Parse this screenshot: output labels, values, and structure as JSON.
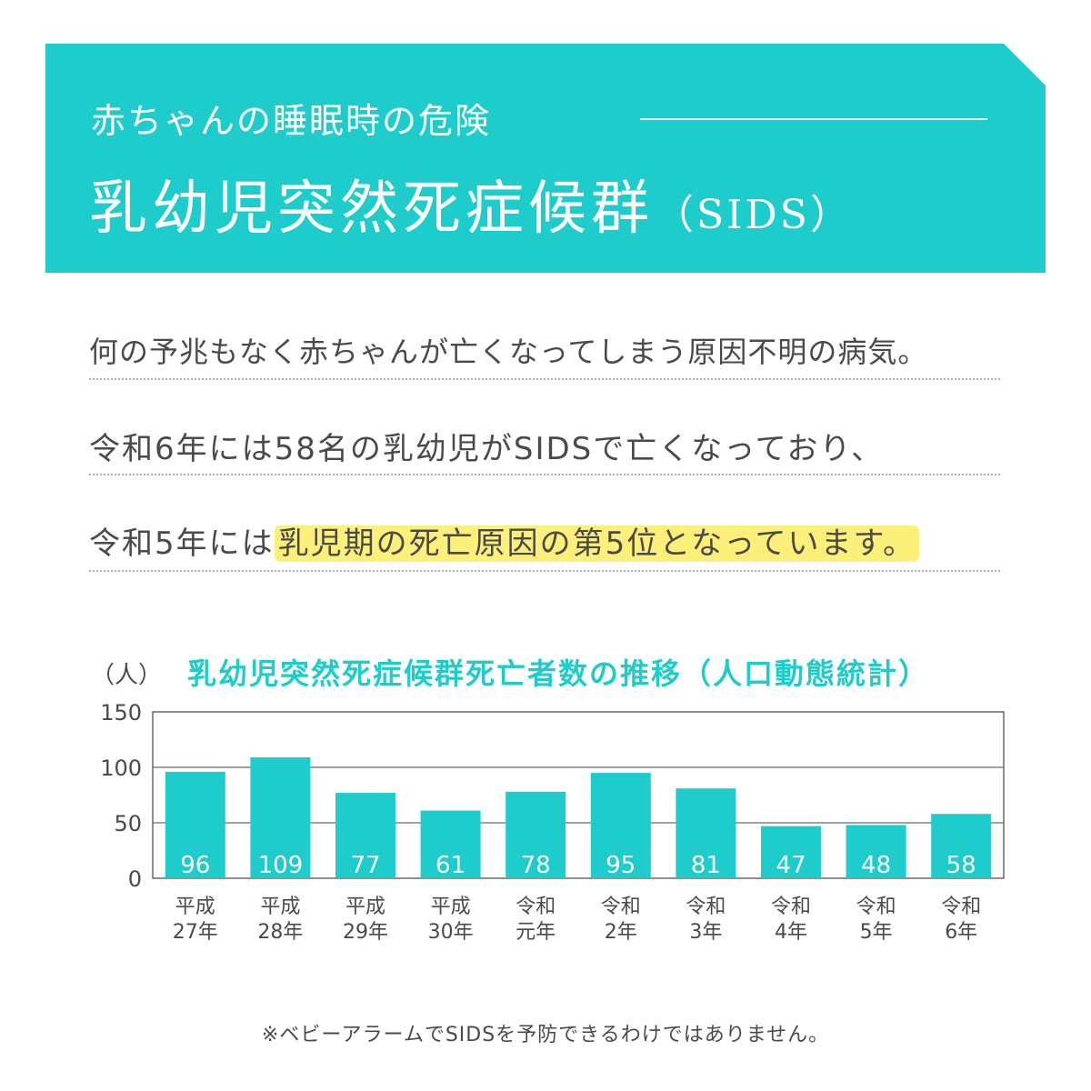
{
  "header": {
    "subtitle": "赤ちゃんの睡眠時の危険",
    "title": "乳幼児突然死症候群",
    "title_abbr": "（SIDS）"
  },
  "body": {
    "line1": "何の予兆もなく赤ちゃんが亡くなってしまう原因不明の病気。",
    "line2": "令和6年には58名の乳幼児がSIDSで亡くなっており、",
    "line3_prefix": "令和5年には",
    "line3_highlight": "乳児期の死亡原因の第5位となっています。"
  },
  "chart_data": {
    "type": "bar",
    "title": "乳幼児突然死症候群死亡者数の推移（人口動態統計）",
    "ylabel": "（人）",
    "categories": [
      [
        "平成",
        "27年"
      ],
      [
        "平成",
        "28年"
      ],
      [
        "平成",
        "29年"
      ],
      [
        "平成",
        "30年"
      ],
      [
        "令和",
        "元年"
      ],
      [
        "令和",
        "2年"
      ],
      [
        "令和",
        "3年"
      ],
      [
        "令和",
        "4年"
      ],
      [
        "令和",
        "5年"
      ],
      [
        "令和",
        "6年"
      ]
    ],
    "values": [
      96,
      109,
      77,
      61,
      78,
      95,
      81,
      47,
      48,
      58
    ],
    "ylim": [
      0,
      150
    ],
    "yticks": [
      0,
      50,
      100,
      150
    ],
    "grid": true,
    "bar_color": "#1ecdcb",
    "grid_color": "#444444"
  },
  "footer": {
    "note": "※ベビーアラームでSIDSを予防できるわけではありません。"
  }
}
